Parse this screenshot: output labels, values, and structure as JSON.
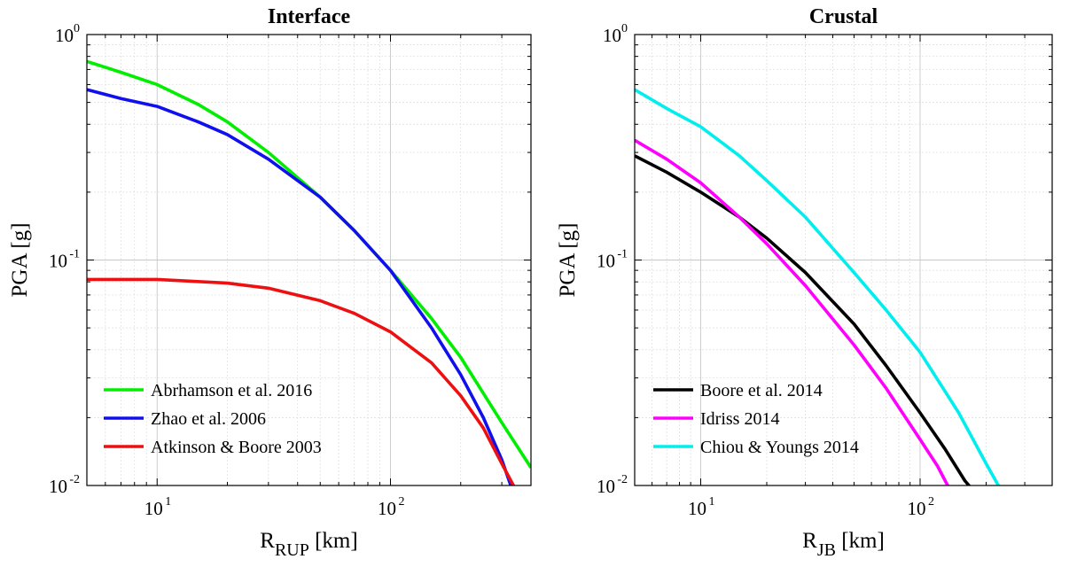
{
  "chart_data": [
    {
      "type": "line",
      "title": "Interface",
      "ylabel": "PGA [g]",
      "xlabel_main": "R",
      "xlabel_sub": "RUP",
      "xlabel_unit": "[km]",
      "xscale": "log",
      "yscale": "log",
      "xlim": [
        5,
        400
      ],
      "ylim": [
        0.01,
        1
      ],
      "x_ticks": [
        {
          "base": "10",
          "exp": "1"
        },
        {
          "base": "10",
          "exp": "2"
        }
      ],
      "y_ticks": [
        {
          "base": "10",
          "exp": "-2"
        },
        {
          "base": "10",
          "exp": "-1"
        },
        {
          "base": "10",
          "exp": "0"
        }
      ],
      "grid": true,
      "legend_position": "bottom-left",
      "series": [
        {
          "name": "Abrhamson et al. 2016",
          "color": "#00ee00",
          "x": [
            5,
            7,
            10,
            15,
            20,
            30,
            50,
            70,
            100,
            150,
            200,
            300,
            400
          ],
          "y": [
            0.76,
            0.68,
            0.6,
            0.49,
            0.41,
            0.3,
            0.19,
            0.135,
            0.09,
            0.055,
            0.037,
            0.019,
            0.012
          ]
        },
        {
          "name": "Zhao et al. 2006",
          "color": "#1010ee",
          "x": [
            5,
            7,
            10,
            15,
            20,
            30,
            50,
            70,
            100,
            150,
            200,
            250,
            300,
            330
          ],
          "y": [
            0.57,
            0.52,
            0.48,
            0.41,
            0.36,
            0.28,
            0.19,
            0.135,
            0.09,
            0.05,
            0.031,
            0.02,
            0.013,
            0.0098
          ]
        },
        {
          "name": "Atkinson & Boore 2003",
          "color": "#ee1010",
          "x": [
            5,
            10,
            20,
            30,
            50,
            70,
            100,
            150,
            200,
            250,
            300,
            340
          ],
          "y": [
            0.082,
            0.082,
            0.079,
            0.075,
            0.066,
            0.058,
            0.048,
            0.035,
            0.025,
            0.018,
            0.0125,
            0.0098
          ]
        }
      ]
    },
    {
      "type": "line",
      "title": "Crustal",
      "ylabel": "PGA [g]",
      "xlabel_main": "R",
      "xlabel_sub": "JB",
      "xlabel_unit": "[km]",
      "xscale": "log",
      "yscale": "log",
      "xlim": [
        5,
        400
      ],
      "ylim": [
        0.01,
        1
      ],
      "x_ticks": [
        {
          "base": "10",
          "exp": "1"
        },
        {
          "base": "10",
          "exp": "2"
        }
      ],
      "y_ticks": [
        {
          "base": "10",
          "exp": "-2"
        },
        {
          "base": "10",
          "exp": "-1"
        },
        {
          "base": "10",
          "exp": "0"
        }
      ],
      "grid": true,
      "legend_position": "bottom-left",
      "series": [
        {
          "name": "Boore et al. 2014",
          "color": "#000000",
          "x": [
            5,
            7,
            10,
            15,
            20,
            30,
            50,
            70,
            100,
            130,
            160,
            170
          ],
          "y": [
            0.29,
            0.245,
            0.2,
            0.155,
            0.125,
            0.088,
            0.052,
            0.034,
            0.021,
            0.0145,
            0.0105,
            0.0098
          ]
        },
        {
          "name": "Idriss 2014",
          "color": "#ff00ff",
          "x": [
            5,
            7,
            10,
            15,
            20,
            30,
            50,
            70,
            100,
            120,
            135
          ],
          "y": [
            0.34,
            0.28,
            0.22,
            0.155,
            0.118,
            0.077,
            0.042,
            0.027,
            0.016,
            0.0122,
            0.0098
          ]
        },
        {
          "name": "Chiou & Youngs 2014",
          "color": "#00eeee",
          "x": [
            5,
            7,
            10,
            15,
            20,
            30,
            50,
            70,
            100,
            150,
            200,
            230
          ],
          "y": [
            0.57,
            0.47,
            0.39,
            0.29,
            0.225,
            0.155,
            0.088,
            0.06,
            0.039,
            0.021,
            0.0125,
            0.0098
          ]
        }
      ]
    }
  ]
}
